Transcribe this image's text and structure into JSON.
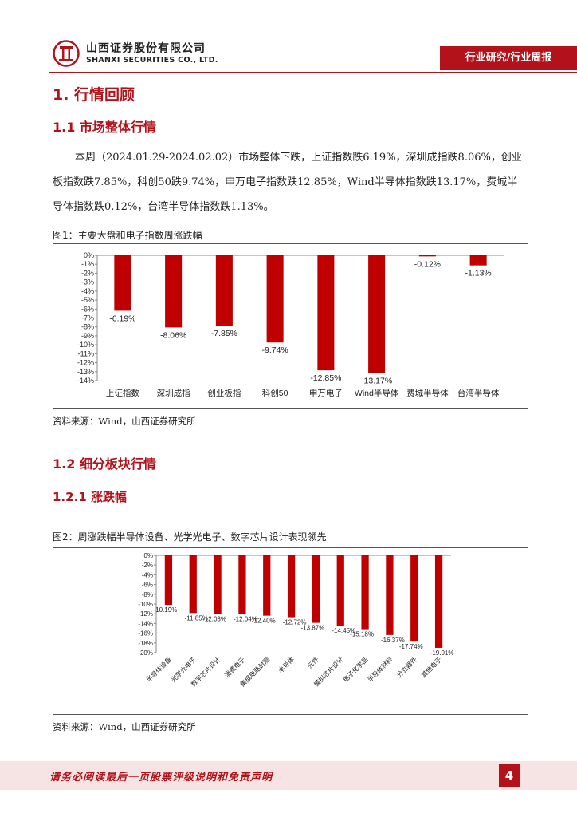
{
  "header": {
    "company_cn": "山西证券股份有限公司",
    "company_en": "SHANXI SECURITIES CO., LTD.",
    "tag": "行业研究/行业周报",
    "brand_color": "#b3121a"
  },
  "sections": {
    "h1": "1. 行情回顾",
    "h2_1": "1.1  市场整体行情",
    "h2_2": "1.2  细分板块行情",
    "h3_1": "1.2.1  涨跌幅"
  },
  "paragraph": "本周（2024.01.29-2024.02.02）市场整体下跌，上证指数跌6.19%，深圳成指跌8.06%，创业板指数跌7.85%，科创50跌9.74%，申万电子指数跌12.85%，Wind半导体指数跌13.17%，费城半导体指数跌0.12%，台湾半导体指数跌1.13%。",
  "figure1": {
    "title": "图1：主要大盘和电子指数周涨跌幅",
    "source": "资料来源：Wind，山西证券研究所"
  },
  "figure2": {
    "title": "图2：周涨跌幅半导体设备、光学光电子、数字芯片设计表现领先",
    "source": "资料来源：Wind，山西证券研究所"
  },
  "footer": {
    "disclaimer": "请务必阅读最后一页股票评级说明和免责声明",
    "page": "4"
  },
  "chart_data": [
    {
      "type": "bar",
      "title": "",
      "categories": [
        "上证指数",
        "深圳成指",
        "创业板指",
        "科创50",
        "申万电子",
        "Wind半导体",
        "费城半导体",
        "台湾半导体"
      ],
      "values": [
        -6.19,
        -8.06,
        -7.85,
        -9.74,
        -12.85,
        -13.17,
        -0.12,
        -1.13
      ],
      "labels": [
        "-6.19%",
        "-8.06%",
        "-7.85%",
        "-9.74%",
        "-12.85%",
        "-13.17%",
        "-0.12%",
        "-1.13%"
      ],
      "yticks": [
        "0%",
        "-1%",
        "-2%",
        "-3%",
        "-4%",
        "-5%",
        "-6%",
        "-7%",
        "-8%",
        "-9%",
        "-10%",
        "-11%",
        "-12%",
        "-13%",
        "-14%"
      ],
      "ylim": [
        -14,
        0
      ],
      "color": "#c00000",
      "grid": false
    },
    {
      "type": "bar",
      "title": "",
      "categories": [
        "半导体设备",
        "光学光电子",
        "数字芯片设计",
        "消费电子",
        "集成电路封测",
        "半导体",
        "元件",
        "模拟芯片设计",
        "电子化学品",
        "半导体材料",
        "分立器件",
        "其他电子"
      ],
      "values": [
        -10.19,
        -11.85,
        -12.03,
        -12.04,
        -12.4,
        -12.72,
        -13.87,
        -14.45,
        -15.18,
        -16.37,
        -17.74,
        -19.01
      ],
      "labels": [
        "-10.19%",
        "-11.85%",
        "-12.03%",
        "-12.04%",
        "-12.40%",
        "-12.72%",
        "-13.87%",
        "-14.45%",
        "-15.18%",
        "-16.37%",
        "-17.74%",
        "-19.01%"
      ],
      "yticks": [
        "0%",
        "-2%",
        "-4%",
        "-6%",
        "-8%",
        "-10%",
        "-12%",
        "-14%",
        "-16%",
        "-18%",
        "-20%"
      ],
      "ylim": [
        -20,
        0
      ],
      "color": "#c00000",
      "grid": false
    }
  ]
}
